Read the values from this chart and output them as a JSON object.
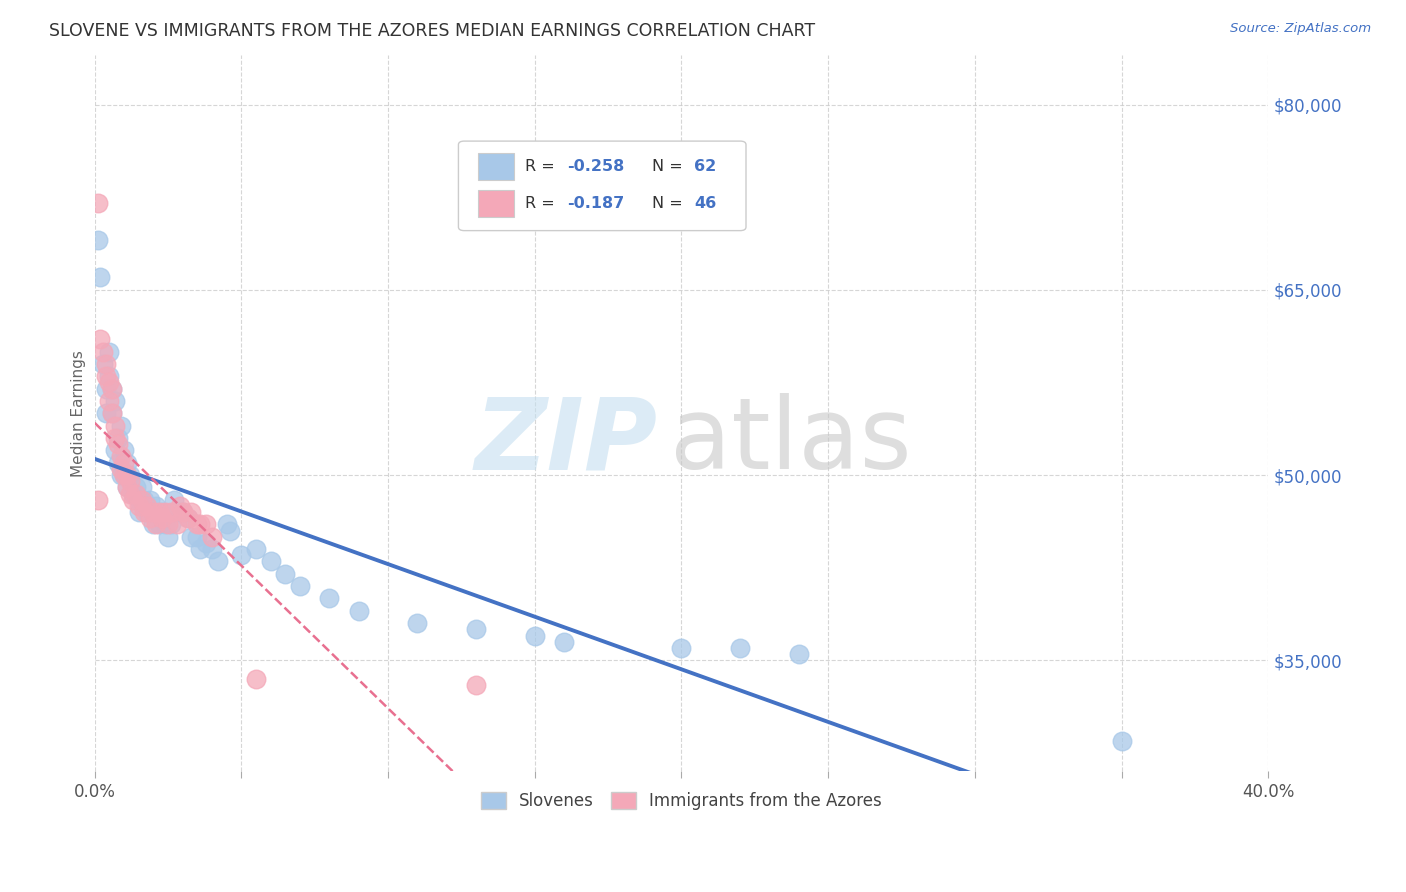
{
  "title": "SLOVENE VS IMMIGRANTS FROM THE AZORES MEDIAN EARNINGS CORRELATION CHART",
  "source": "Source: ZipAtlas.com",
  "ylabel": "Median Earnings",
  "y_ticks": [
    35000,
    50000,
    65000,
    80000
  ],
  "y_tick_labels": [
    "$35,000",
    "$50,000",
    "$65,000",
    "$80,000"
  ],
  "x_min": 0.0,
  "x_max": 0.4,
  "y_min": 26000,
  "y_max": 84000,
  "legend_label_blue": "Slovenes",
  "legend_label_pink": "Immigrants from the Azores",
  "blue_color": "#a8c8e8",
  "pink_color": "#f4a8b8",
  "trendline_blue_color": "#4472c4",
  "trendline_pink_color": "#e87090",
  "blue_r": "-0.258",
  "blue_n": "62",
  "pink_r": "-0.187",
  "pink_n": "46",
  "blue_scatter": [
    [
      0.001,
      69000
    ],
    [
      0.002,
      66000
    ],
    [
      0.003,
      59000
    ],
    [
      0.004,
      57000
    ],
    [
      0.004,
      55000
    ],
    [
      0.005,
      60000
    ],
    [
      0.005,
      58000
    ],
    [
      0.006,
      57000
    ],
    [
      0.006,
      55000
    ],
    [
      0.007,
      56000
    ],
    [
      0.007,
      52000
    ],
    [
      0.008,
      53000
    ],
    [
      0.008,
      51000
    ],
    [
      0.009,
      54000
    ],
    [
      0.009,
      50000
    ],
    [
      0.01,
      52000
    ],
    [
      0.01,
      50000
    ],
    [
      0.011,
      51000
    ],
    [
      0.011,
      49000
    ],
    [
      0.012,
      50000
    ],
    [
      0.013,
      48500
    ],
    [
      0.014,
      49000
    ],
    [
      0.015,
      48000
    ],
    [
      0.015,
      47000
    ],
    [
      0.016,
      49000
    ],
    [
      0.017,
      48000
    ],
    [
      0.018,
      47000
    ],
    [
      0.019,
      48000
    ],
    [
      0.02,
      46000
    ],
    [
      0.021,
      47500
    ],
    [
      0.022,
      46000
    ],
    [
      0.023,
      47000
    ],
    [
      0.024,
      46000
    ],
    [
      0.025,
      45000
    ],
    [
      0.026,
      46000
    ],
    [
      0.027,
      48000
    ],
    [
      0.028,
      47000
    ],
    [
      0.03,
      47000
    ],
    [
      0.032,
      46500
    ],
    [
      0.033,
      45000
    ],
    [
      0.035,
      45000
    ],
    [
      0.036,
      44000
    ],
    [
      0.038,
      44500
    ],
    [
      0.04,
      44000
    ],
    [
      0.042,
      43000
    ],
    [
      0.045,
      46000
    ],
    [
      0.046,
      45500
    ],
    [
      0.05,
      43500
    ],
    [
      0.055,
      44000
    ],
    [
      0.06,
      43000
    ],
    [
      0.065,
      42000
    ],
    [
      0.07,
      41000
    ],
    [
      0.08,
      40000
    ],
    [
      0.09,
      39000
    ],
    [
      0.11,
      38000
    ],
    [
      0.13,
      37500
    ],
    [
      0.15,
      37000
    ],
    [
      0.16,
      36500
    ],
    [
      0.2,
      36000
    ],
    [
      0.35,
      28500
    ],
    [
      0.22,
      36000
    ],
    [
      0.24,
      35500
    ]
  ],
  "pink_scatter": [
    [
      0.001,
      72000
    ],
    [
      0.002,
      61000
    ],
    [
      0.003,
      60000
    ],
    [
      0.004,
      59000
    ],
    [
      0.004,
      58000
    ],
    [
      0.005,
      57500
    ],
    [
      0.005,
      56000
    ],
    [
      0.006,
      57000
    ],
    [
      0.006,
      55000
    ],
    [
      0.007,
      54000
    ],
    [
      0.007,
      53000
    ],
    [
      0.008,
      52500
    ],
    [
      0.009,
      51500
    ],
    [
      0.009,
      50500
    ],
    [
      0.01,
      51000
    ],
    [
      0.01,
      50000
    ],
    [
      0.011,
      50000
    ],
    [
      0.011,
      49000
    ],
    [
      0.012,
      49500
    ],
    [
      0.012,
      48500
    ],
    [
      0.013,
      48000
    ],
    [
      0.014,
      48500
    ],
    [
      0.015,
      47500
    ],
    [
      0.016,
      48000
    ],
    [
      0.017,
      47000
    ],
    [
      0.018,
      47500
    ],
    [
      0.019,
      46500
    ],
    [
      0.02,
      47000
    ],
    [
      0.021,
      46000
    ],
    [
      0.022,
      47000
    ],
    [
      0.023,
      46500
    ],
    [
      0.024,
      47000
    ],
    [
      0.025,
      46000
    ],
    [
      0.026,
      47000
    ],
    [
      0.028,
      46000
    ],
    [
      0.029,
      47500
    ],
    [
      0.03,
      47000
    ],
    [
      0.032,
      46500
    ],
    [
      0.033,
      47000
    ],
    [
      0.035,
      46000
    ],
    [
      0.036,
      46000
    ],
    [
      0.038,
      46000
    ],
    [
      0.04,
      45000
    ],
    [
      0.055,
      33500
    ],
    [
      0.13,
      33000
    ],
    [
      0.001,
      48000
    ]
  ]
}
